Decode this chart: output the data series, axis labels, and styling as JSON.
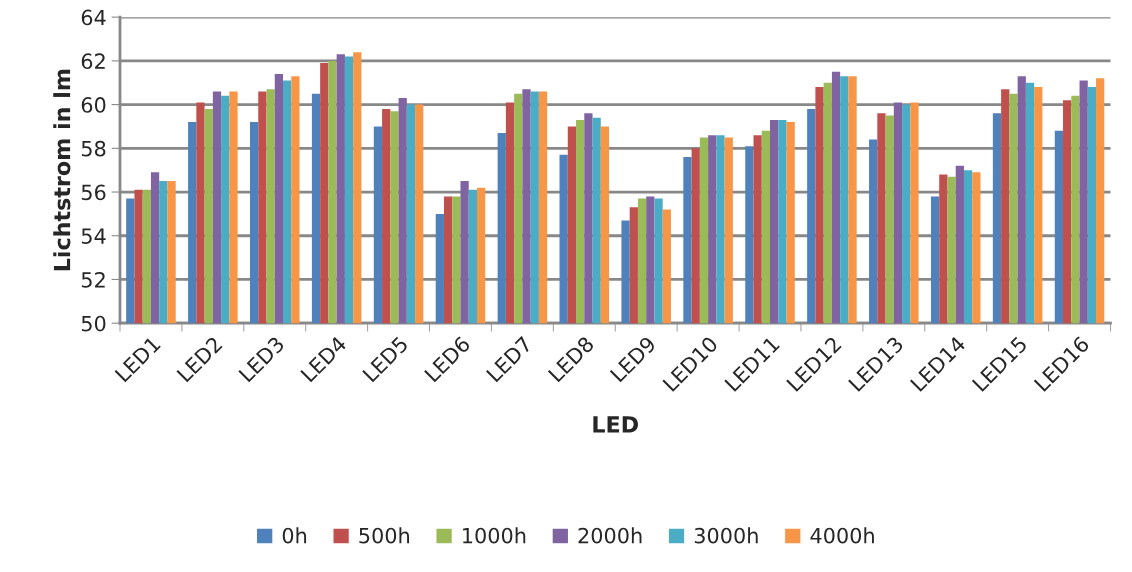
{
  "chart_data": {
    "type": "bar",
    "xlabel": "LED",
    "ylabel": "Lichtstrom in lm",
    "categories": [
      "LED1",
      "LED2",
      "LED3",
      "LED4",
      "LED5",
      "LED6",
      "LED7",
      "LED8",
      "LED9",
      "LED10",
      "LED11",
      "LED12",
      "LED13",
      "LED14",
      "LED15",
      "LED16"
    ],
    "series": [
      {
        "name": "0h",
        "color": "#4f81bd",
        "values": [
          55.7,
          59.2,
          59.2,
          60.5,
          59.0,
          55.0,
          58.7,
          57.7,
          54.7,
          57.6,
          58.1,
          59.8,
          58.4,
          55.8,
          59.6,
          58.8
        ]
      },
      {
        "name": "500h",
        "color": "#c0504d",
        "values": [
          56.1,
          60.1,
          60.6,
          61.9,
          59.8,
          55.8,
          60.1,
          59.0,
          55.3,
          58.0,
          58.6,
          60.8,
          59.6,
          56.8,
          60.7,
          60.2
        ]
      },
      {
        "name": "1000h",
        "color": "#9bbb59",
        "values": [
          56.1,
          59.8,
          60.7,
          62.0,
          59.7,
          55.8,
          60.5,
          59.3,
          55.7,
          58.5,
          58.8,
          61.0,
          59.5,
          56.7,
          60.5,
          60.4
        ]
      },
      {
        "name": "2000h",
        "color": "#8064a2",
        "values": [
          56.9,
          60.6,
          61.4,
          62.3,
          60.3,
          56.5,
          60.7,
          59.6,
          55.8,
          58.6,
          59.3,
          61.5,
          60.1,
          57.2,
          61.3,
          61.1
        ]
      },
      {
        "name": "3000h",
        "color": "#4bacc6",
        "values": [
          56.5,
          60.4,
          61.1,
          62.2,
          60.0,
          56.1,
          60.6,
          59.4,
          55.7,
          58.6,
          59.3,
          61.3,
          60.0,
          57.0,
          61.0,
          60.8
        ]
      },
      {
        "name": "4000h",
        "color": "#f79646",
        "values": [
          56.5,
          60.6,
          61.3,
          62.4,
          60.0,
          56.2,
          60.6,
          59.0,
          55.2,
          58.5,
          59.2,
          61.3,
          60.1,
          56.9,
          60.8,
          61.2
        ]
      }
    ],
    "ylim": [
      50,
      64
    ],
    "yticks": [
      50,
      52,
      54,
      56,
      58,
      60,
      62,
      64
    ],
    "grid": "y",
    "legend": "bottom"
  }
}
